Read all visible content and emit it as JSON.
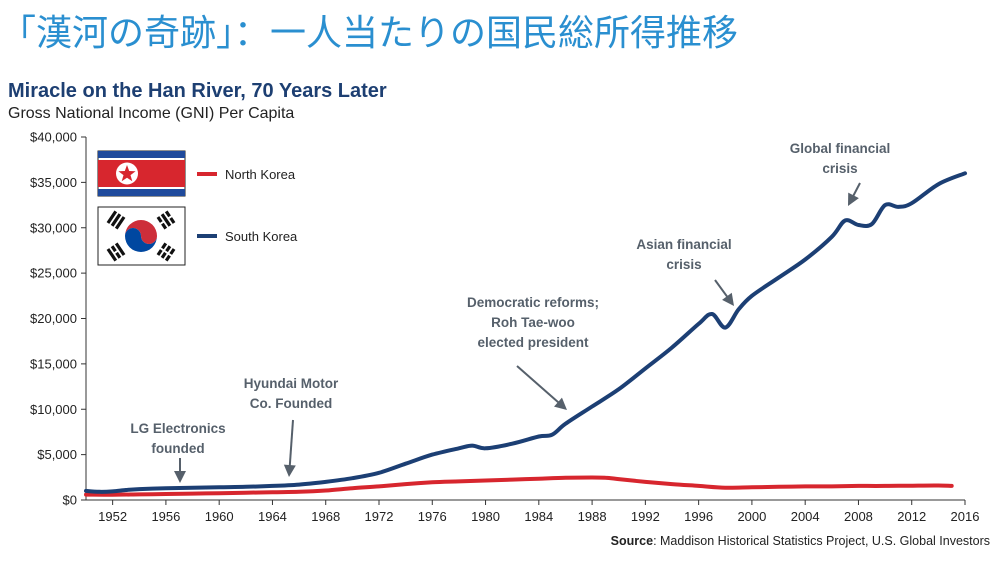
{
  "page_title": "「漢河の奇跡」：一人当たりの国民総所得推移",
  "chart_data": {
    "type": "line",
    "title": "Miracle on the Han River, 70 Years Later",
    "subtitle": "Gross National Income (GNI) Per Capita",
    "xlim": [
      1950,
      2016
    ],
    "ylim": [
      0,
      40000
    ],
    "x_ticks": [
      1952,
      1956,
      1960,
      1964,
      1968,
      1972,
      1976,
      1980,
      1984,
      1988,
      1992,
      1996,
      2000,
      2004,
      2008,
      2012,
      2016
    ],
    "y_ticks": [
      0,
      5000,
      10000,
      15000,
      20000,
      25000,
      30000,
      35000,
      40000
    ],
    "y_tick_labels": [
      "$0",
      "$5,000",
      "$10,000",
      "$15,000",
      "$20,000",
      "$25,000",
      "$30,000",
      "$35,000",
      "$40,000"
    ],
    "grid": false,
    "legend_position": "top-left",
    "series": [
      {
        "name": "North Korea",
        "color": "#d7262e",
        "icon": "north-korea-flag",
        "x": [
          1950,
          1952,
          1954,
          1956,
          1958,
          1960,
          1962,
          1964,
          1966,
          1968,
          1970,
          1972,
          1974,
          1976,
          1978,
          1980,
          1982,
          1984,
          1986,
          1988,
          1989,
          1990,
          1992,
          1994,
          1996,
          1998,
          2000,
          2002,
          2004,
          2006,
          2008,
          2010,
          2012,
          2014,
          2015
        ],
        "y": [
          600,
          580,
          620,
          660,
          700,
          750,
          800,
          850,
          900,
          1050,
          1300,
          1500,
          1750,
          1950,
          2050,
          2150,
          2250,
          2350,
          2450,
          2480,
          2450,
          2300,
          2000,
          1750,
          1550,
          1350,
          1400,
          1450,
          1500,
          1500,
          1550,
          1550,
          1580,
          1600,
          1550
        ]
      },
      {
        "name": "South Korea",
        "color": "#1c3f74",
        "icon": "south-korea-flag",
        "x": [
          1950,
          1951,
          1952,
          1953,
          1954,
          1956,
          1958,
          1960,
          1962,
          1964,
          1966,
          1968,
          1970,
          1972,
          1974,
          1976,
          1978,
          1979,
          1980,
          1982,
          1984,
          1985,
          1986,
          1988,
          1990,
          1992,
          1994,
          1996,
          1997,
          1998,
          1999,
          2000,
          2002,
          2004,
          2006,
          2007,
          2008,
          2009,
          2010,
          2011,
          2012,
          2014,
          2016
        ],
        "y": [
          1000,
          900,
          950,
          1100,
          1200,
          1300,
          1350,
          1400,
          1450,
          1550,
          1700,
          2000,
          2400,
          3000,
          4000,
          5000,
          5700,
          6000,
          5700,
          6200,
          7000,
          7200,
          8400,
          10300,
          12200,
          14500,
          16800,
          19400,
          20500,
          19000,
          21000,
          22500,
          24500,
          26500,
          29000,
          30800,
          30300,
          30400,
          32500,
          32300,
          32700,
          34800,
          36000
        ]
      }
    ],
    "annotations": [
      {
        "text": [
          "LG Electronics",
          "founded"
        ],
        "arrow_year": 1958
      },
      {
        "text": [
          "Hyundai Motor",
          "Co. Founded"
        ],
        "arrow_year": 1966
      },
      {
        "text": [
          "Democratic reforms;",
          "Roh Tae-woo",
          "elected president"
        ],
        "arrow_year": 1987
      },
      {
        "text": [
          "Asian financial",
          "crisis"
        ],
        "arrow_year": 1998
      },
      {
        "text": [
          "Global financial",
          "crisis"
        ],
        "arrow_year": 2009
      }
    ],
    "source_label": "Source",
    "source_text": ": Maddison Historical Statistics Project, U.S. Global Investors"
  }
}
